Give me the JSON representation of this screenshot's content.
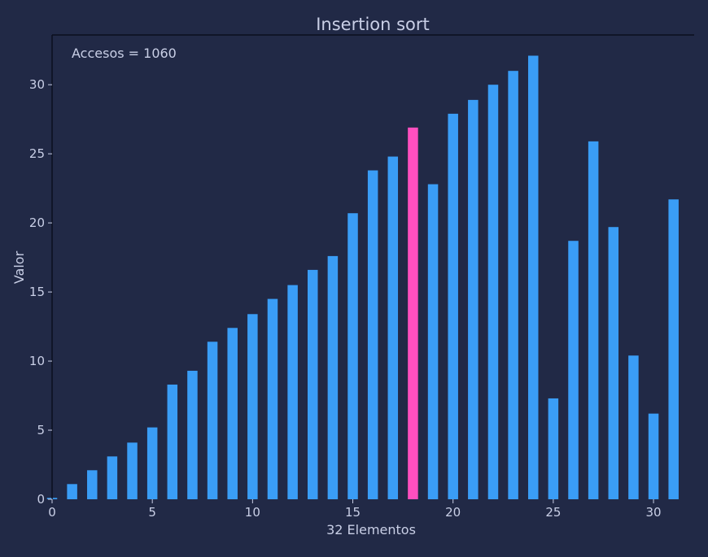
{
  "chart_data": {
    "type": "bar",
    "title": "Insertion sort",
    "xlabel": "32 Elementos",
    "ylabel": "Valor",
    "annotation": "Accesos = 1060",
    "xlim": [
      0,
      31.5
    ],
    "ylim": [
      0,
      33.6
    ],
    "xticks": [
      0,
      5,
      10,
      15,
      20,
      25,
      30
    ],
    "yticks": [
      0,
      5,
      10,
      15,
      20,
      25,
      30
    ],
    "x": [
      0,
      1,
      2,
      3,
      4,
      5,
      6,
      7,
      8,
      9,
      10,
      11,
      12,
      13,
      14,
      15,
      16,
      17,
      18,
      19,
      20,
      21,
      22,
      23,
      24,
      25,
      26,
      27,
      28,
      29,
      30,
      31
    ],
    "values": [
      0.1,
      1.1,
      2.1,
      3.1,
      4.1,
      5.2,
      8.3,
      9.3,
      11.4,
      12.4,
      13.4,
      14.5,
      15.5,
      16.6,
      17.6,
      20.7,
      23.8,
      24.8,
      26.9,
      22.8,
      27.9,
      28.9,
      30.0,
      31.0,
      32.1,
      7.3,
      18.7,
      25.9,
      19.7,
      10.4,
      6.2,
      21.7
    ],
    "highlight_index": 18,
    "grid": false,
    "colors": {
      "background": "#212946",
      "bar": "#3a9df6",
      "highlight": "#ff4fbf",
      "axis": "#0b0f1e",
      "text": "#c9cfe6"
    }
  }
}
